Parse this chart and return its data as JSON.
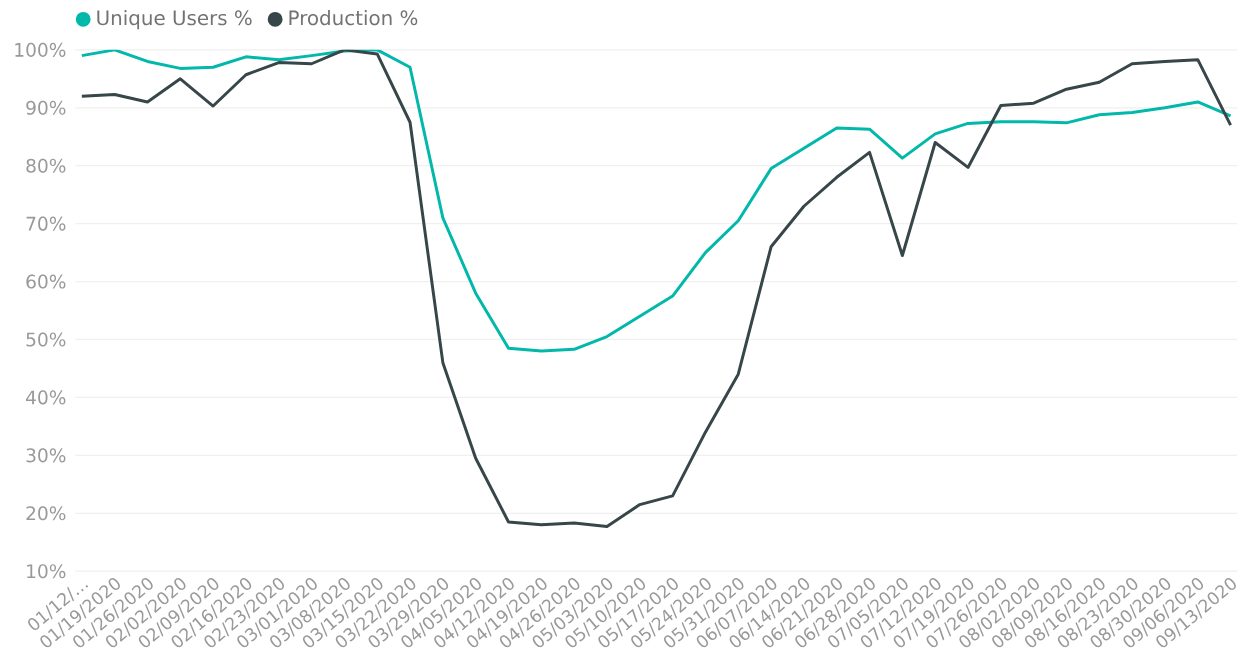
{
  "chart_data": {
    "type": "line",
    "categories": [
      "01/12/…",
      "01/19/2020",
      "01/26/2020",
      "02/02/2020",
      "02/09/2020",
      "02/16/2020",
      "02/23/2020",
      "03/01/2020",
      "03/08/2020",
      "03/15/2020",
      "03/22/2020",
      "03/29/2020",
      "04/05/2020",
      "04/12/2020",
      "04/19/2020",
      "04/26/2020",
      "05/03/2020",
      "05/10/2020",
      "05/17/2020",
      "05/24/2020",
      "05/31/2020",
      "06/07/2020",
      "06/14/2020",
      "06/21/2020",
      "06/28/2020",
      "07/05/2020",
      "07/12/2020",
      "07/19/2020",
      "07/26/2020",
      "08/02/2020",
      "08/09/2020",
      "08/16/2020",
      "08/23/2020",
      "08/30/2020",
      "09/06/2020",
      "09/13/2020"
    ],
    "series": [
      {
        "name": "Unique Users %",
        "color": "#01b8aa",
        "values": [
          99,
          100,
          98,
          96.8,
          97,
          98.8,
          98.3,
          99,
          99.8,
          100,
          97,
          71,
          58,
          48.5,
          48,
          48.3,
          50.5,
          54,
          57.5,
          65,
          70.5,
          79.5,
          83,
          86.5,
          86.3,
          81.3,
          85.5,
          87.3,
          87.6,
          87.6,
          87.4,
          88.8,
          89.2,
          90,
          91,
          88.6
        ]
      },
      {
        "name": "Production %",
        "color": "#374649",
        "values": [
          92,
          92.3,
          91,
          95,
          90.3,
          95.7,
          97.8,
          97.6,
          100,
          99.3,
          87.5,
          46,
          29.5,
          18.5,
          18,
          18.3,
          17.7,
          21.5,
          23,
          34,
          44,
          66,
          73,
          78,
          82.3,
          64.5,
          84,
          79.7,
          90.4,
          90.8,
          93.2,
          94.4,
          97.6,
          98,
          98.3,
          87
        ]
      }
    ],
    "ylim": [
      10,
      100
    ],
    "yticks": [
      {
        "value": 10,
        "label": "10%"
      },
      {
        "value": 20,
        "label": "20%"
      },
      {
        "value": 30,
        "label": "30%"
      },
      {
        "value": 40,
        "label": "40%"
      },
      {
        "value": 50,
        "label": "50%"
      },
      {
        "value": 60,
        "label": "60%"
      },
      {
        "value": 70,
        "label": "70%"
      },
      {
        "value": 80,
        "label": "80%"
      },
      {
        "value": 90,
        "label": "90%"
      },
      {
        "value": 100,
        "label": "100%"
      }
    ],
    "grid": "y",
    "legend": "top left",
    "marker": "none",
    "line_style": "solid"
  }
}
